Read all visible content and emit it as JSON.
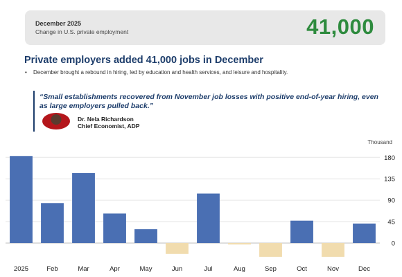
{
  "banner": {
    "month": "December 2025",
    "subtitle": "Change in U.S. private employment",
    "value": "41,000"
  },
  "headline": "Private employers added 41,000 jobs in December",
  "bullet": "December brought a rebound in hiring, led by education and health services, and leisure and hospitality.",
  "quote": "“Small establishments recovered from November job losses with positive end-of-year hiring, even as large employers pulled back.”",
  "person": {
    "name": "Dr. Nela Richardson",
    "title": "Chief Economist, ADP"
  },
  "colors": {
    "positive_bar": "#4a6fb3",
    "negative_bar": "#f1dcae",
    "highlight_value": "#2e8b3e",
    "headline": "#1d3d6b"
  },
  "chart_data": {
    "type": "bar",
    "unit_label": "Thousand",
    "categories": [
      "2025",
      "Feb",
      "Mar",
      "Apr",
      "May",
      "Jun",
      "Jul",
      "Aug",
      "Sep",
      "Oct",
      "Nov",
      "Dec"
    ],
    "values": [
      183,
      84,
      147,
      62,
      29,
      -23,
      104,
      -3,
      -29,
      47,
      -29,
      41
    ],
    "y_ticks": [
      0,
      45,
      90,
      135,
      180
    ],
    "ylim": [
      -35,
      195
    ],
    "grid": true,
    "y_axis_side": "right"
  }
}
